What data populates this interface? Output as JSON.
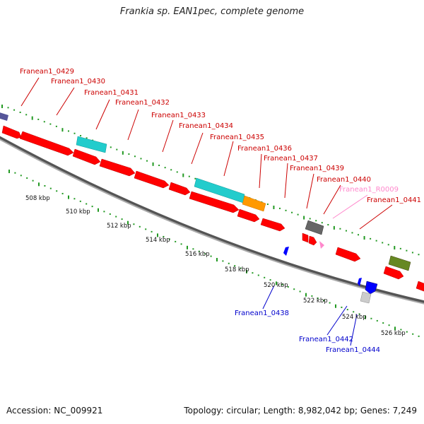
{
  "title": "Frankia sp. EAN1pec, complete genome",
  "footer": {
    "accession": "Accession: NC_009921",
    "stats": "Topology: circular; Length: 8,982,042 bp; Genes: 7,249"
  },
  "scale_ticks": [
    "508 kbp",
    "510 kbp",
    "512 kbp",
    "514 kbp",
    "516 kbp",
    "518 kbp",
    "520 kbp",
    "522 kbp",
    "524 kbp",
    "526 kbp"
  ],
  "gene_labels_forward": [
    {
      "text": "Franean1_0429",
      "color": "#cc0000"
    },
    {
      "text": "Franean1_0430",
      "color": "#cc0000"
    },
    {
      "text": "Franean1_0431",
      "color": "#cc0000"
    },
    {
      "text": "Franean1_0432",
      "color": "#cc0000"
    },
    {
      "text": "Franean1_0433",
      "color": "#cc0000"
    },
    {
      "text": "Franean1_0434",
      "color": "#cc0000"
    },
    {
      "text": "Franean1_0435",
      "color": "#cc0000"
    },
    {
      "text": "Franean1_0436",
      "color": "#cc0000"
    },
    {
      "text": "Franean1_0437",
      "color": "#cc0000"
    },
    {
      "text": "Franean1_0439",
      "color": "#cc0000"
    },
    {
      "text": "Franean1_0440",
      "color": "#cc0000"
    },
    {
      "text": "Franean1_R0009",
      "color": "#ff88cc"
    },
    {
      "text": "Franean1_0441",
      "color": "#cc0000"
    }
  ],
  "gene_labels_reverse": [
    {
      "text": "Franean1_0438",
      "color": "#0000cc"
    },
    {
      "text": "Franean1_0442",
      "color": "#0000cc"
    },
    {
      "text": "Franean1_0444",
      "color": "#0000cc"
    }
  ],
  "colors": {
    "cds": "#ff0000",
    "cds_reverse": "#0000ff",
    "rna": "#ff88cc",
    "teal_feature": "#22cccc",
    "orange_feature": "#ff9900",
    "grey_feature": "#666666",
    "olive_feature": "#668822",
    "light_grey_feature": "#cccccc",
    "tick_green": "#229922",
    "backbone": "#888888"
  }
}
